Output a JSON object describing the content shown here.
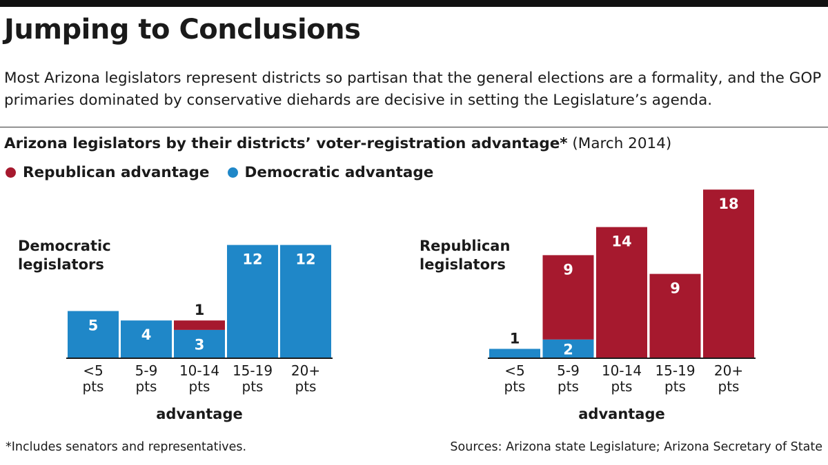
{
  "header": {
    "title": "Jumping to Conclusions",
    "subtitle": "Most Arizona legislators represent districts so partisan that the general elections are a formality, and the GOP primaries dominated by conservative diehards are decisive in setting the Legislature’s agenda."
  },
  "chart_heading": {
    "bold": "Arizona legislators by their districts’ voter-registration advantage*",
    "normal": "(March 2014)"
  },
  "legend": {
    "items": [
      {
        "label": "Republican advantage",
        "color": "#a6192e"
      },
      {
        "label": "Democratic advantage",
        "color": "#1f87c8"
      }
    ]
  },
  "colors": {
    "republican": "#a6192e",
    "democratic": "#1f87c8",
    "text": "#1a1a1a"
  },
  "chart_data": [
    {
      "type": "bar",
      "stacked": true,
      "title": "Democratic legislators",
      "xlabel": "advantage",
      "ylabel": "",
      "categories": [
        "<5 pts",
        "5-9 pts",
        "10-14 pts",
        "15-19 pts",
        "20+ pts"
      ],
      "series": [
        {
          "name": "Democratic advantage",
          "color": "#1f87c8",
          "values": [
            5,
            4,
            3,
            12,
            12
          ]
        },
        {
          "name": "Republican advantage",
          "color": "#a6192e",
          "values": [
            0,
            0,
            1,
            0,
            0
          ]
        }
      ],
      "grid": false
    },
    {
      "type": "bar",
      "stacked": true,
      "title": "Republican legislators",
      "xlabel": "advantage",
      "ylabel": "",
      "categories": [
        "<5 pts",
        "5-9 pts",
        "10-14 pts",
        "15-19 pts",
        "20+ pts"
      ],
      "series": [
        {
          "name": "Democratic advantage",
          "color": "#1f87c8",
          "values": [
            1,
            2,
            0,
            0,
            0
          ]
        },
        {
          "name": "Republican advantage",
          "color": "#a6192e",
          "values": [
            0,
            9,
            14,
            9,
            18
          ]
        }
      ],
      "grid": false
    }
  ],
  "footer": {
    "footnote": "*Includes senators and representatives.",
    "source": "Sources: Arizona state Legislature; Arizona Secretary of State"
  }
}
